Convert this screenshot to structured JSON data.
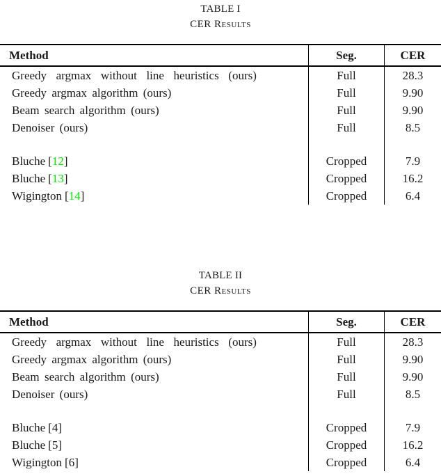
{
  "page": {
    "colors": {
      "background": "#ffffff",
      "text": "#1a1a1a",
      "rule": "#000000",
      "cite_green": "#00e400"
    },
    "cite_open": "[",
    "cite_close": "]"
  },
  "tables": [
    {
      "caption_line1": "TABLE I",
      "caption_line2": "CER Results",
      "header": {
        "method": "Method",
        "seg": "Seg.",
        "cer": "CER"
      },
      "groups": [
        {
          "rows": [
            {
              "method": "Greedy argmax without line heuristics (ours)",
              "seg": "Full",
              "cer": "28.3"
            },
            {
              "method": "Greedy argmax algorithm (ours)",
              "seg": "Full",
              "cer": "9.90"
            },
            {
              "method": "Beam search algorithm (ours)",
              "seg": "Full",
              "cer": "9.90"
            },
            {
              "method": "Denoiser (ours)",
              "seg": "Full",
              "cer": "8.5"
            }
          ]
        },
        {
          "rows": [
            {
              "author": "Bluche",
              "cite": "12",
              "seg": "Cropped",
              "cer": "7.9"
            },
            {
              "author": "Bluche",
              "cite": "13",
              "seg": "Cropped",
              "cer": "16.2"
            },
            {
              "author": "Wigington",
              "cite": "14",
              "seg": "Cropped",
              "cer": "6.4"
            }
          ]
        }
      ]
    },
    {
      "caption_line1": "TABLE II",
      "caption_line2": "CER Results",
      "header": {
        "method": "Method",
        "seg": "Seg.",
        "cer": "CER"
      },
      "groups": [
        {
          "rows": [
            {
              "method": "Greedy argmax without line heuristics (ours)",
              "seg": "Full",
              "cer": "28.3"
            },
            {
              "method": "Greedy argmax algorithm (ours)",
              "seg": "Full",
              "cer": "9.90"
            },
            {
              "method": "Beam search algorithm (ours)",
              "seg": "Full",
              "cer": "9.90"
            },
            {
              "method": "Denoiser (ours)",
              "seg": "Full",
              "cer": "8.5"
            }
          ]
        },
        {
          "rows": [
            {
              "author": "Bluche",
              "cite": "4",
              "seg": "Cropped",
              "cer": "7.9"
            },
            {
              "author": "Bluche",
              "cite": "5",
              "seg": "Cropped",
              "cer": "16.2"
            },
            {
              "author": "Wigington",
              "cite": "6",
              "seg": "Cropped",
              "cer": "6.4"
            }
          ]
        }
      ]
    }
  ]
}
